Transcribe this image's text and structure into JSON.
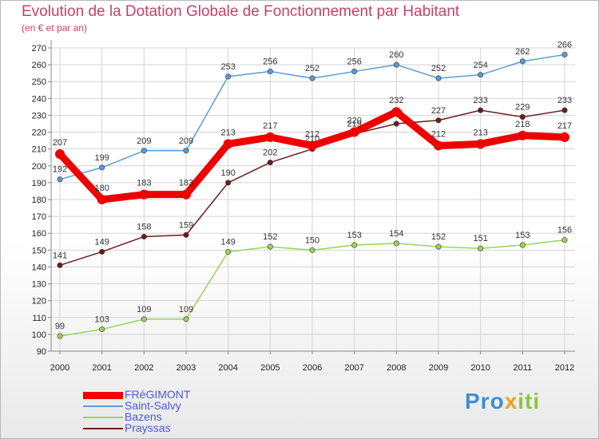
{
  "header": {
    "title": "Evolution de la Dotation Globale de Fonctionnement par Habitant",
    "subtitle": "(en € et par an)"
  },
  "brand": {
    "part1": "Pro",
    "part2": "x",
    "part3": "iti"
  },
  "chart_data": {
    "type": "line",
    "title": "Evolution de la Dotation Globale de Fonctionnement par Habitant",
    "subtitle": "(en € et par an)",
    "xlabel": "",
    "ylabel": "",
    "x": [
      2000,
      2001,
      2002,
      2003,
      2004,
      2005,
      2006,
      2007,
      2008,
      2009,
      2010,
      2011,
      2012
    ],
    "ylim": [
      90,
      270
    ],
    "yticks": [
      90,
      100,
      110,
      120,
      130,
      140,
      150,
      160,
      170,
      180,
      190,
      200,
      210,
      220,
      230,
      240,
      250,
      260,
      270
    ],
    "grid": true,
    "legend_position": "bottom-left",
    "series": [
      {
        "name": "Saint-Salvy",
        "color": "#5b9bd5",
        "emphasis": false,
        "values": [
          192,
          199,
          209,
          209,
          253,
          256,
          252,
          256,
          260,
          252,
          254,
          262,
          266
        ]
      },
      {
        "name": "Bazens",
        "color": "#9ad35b",
        "emphasis": false,
        "values": [
          99,
          103,
          109,
          109,
          149,
          152,
          150,
          153,
          154,
          152,
          151,
          153,
          156
        ]
      },
      {
        "name": "Prayssas",
        "color": "#6b1d1d",
        "emphasis": false,
        "values": [
          141,
          149,
          158,
          159,
          190,
          202,
          210,
          219,
          225,
          227,
          233,
          229,
          233
        ]
      },
      {
        "name": "FRéGIMONT",
        "color": "#ee0000",
        "emphasis": true,
        "values": [
          207,
          180,
          183,
          183,
          213,
          217,
          212,
          220,
          232,
          212,
          213,
          218,
          217
        ]
      }
    ],
    "legend_order": [
      "FRéGIMONT",
      "Saint-Salvy",
      "Bazens",
      "Prayssas"
    ]
  }
}
